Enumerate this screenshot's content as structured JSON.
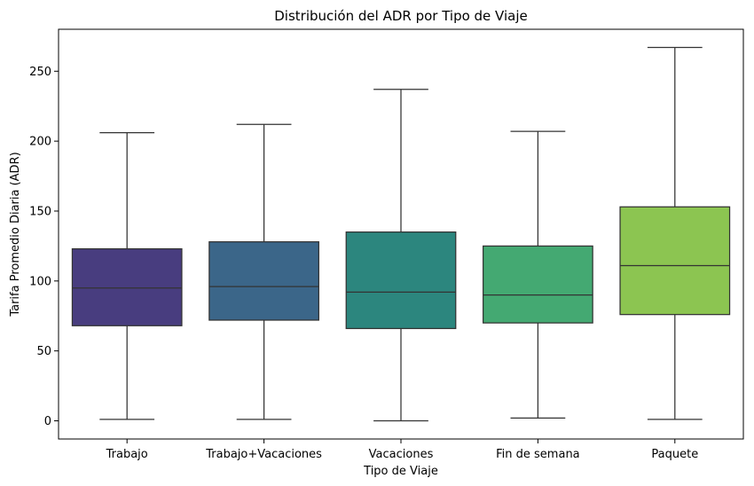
{
  "chart_data": {
    "type": "box",
    "title": "Distribución del ADR por Tipo de Viaje",
    "xlabel": "Tipo de Viaje",
    "ylabel": "Tarifa Promedio Diaria (ADR)",
    "ylim": [
      -13,
      280
    ],
    "yticks": [
      0,
      50,
      100,
      150,
      200,
      250
    ],
    "grid": false,
    "categories": [
      "Trabajo",
      "Trabajo+Vacaciones",
      "Vacaciones",
      "Fin de semana",
      "Paquete"
    ],
    "boxes": [
      {
        "category": "Trabajo",
        "whisker_low": 1,
        "q1": 68,
        "median": 95,
        "q3": 123,
        "whisker_high": 206,
        "color": "#483d7f"
      },
      {
        "category": "Trabajo+Vacaciones",
        "whisker_low": 1,
        "q1": 72,
        "median": 96,
        "q3": 128,
        "whisker_high": 212,
        "color": "#3b6689"
      },
      {
        "category": "Vacaciones",
        "whisker_low": 0,
        "q1": 66,
        "median": 92,
        "q3": 135,
        "whisker_high": 237,
        "color": "#2c867e"
      },
      {
        "category": "Fin de semana",
        "whisker_low": 2,
        "q1": 70,
        "median": 90,
        "q3": 125,
        "whisker_high": 207,
        "color": "#44a972"
      },
      {
        "category": "Paquete",
        "whisker_low": 1,
        "q1": 76,
        "median": 111,
        "q3": 153,
        "whisker_high": 267,
        "color": "#8cc551"
      }
    ]
  }
}
